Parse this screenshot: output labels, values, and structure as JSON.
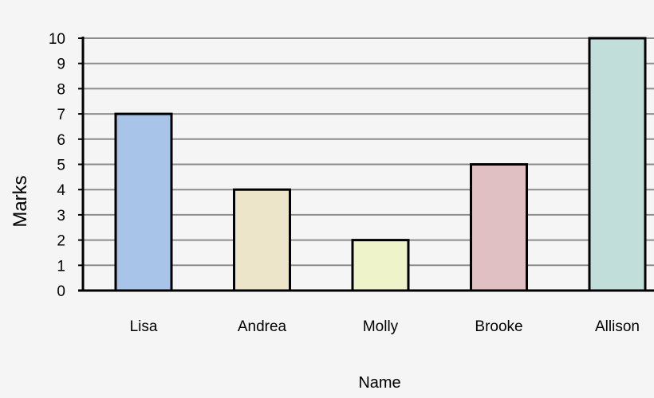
{
  "chart_data": {
    "type": "bar",
    "title": "",
    "xlabel": "Name",
    "ylabel": "Marks",
    "categories": [
      "Lisa",
      "Andrea",
      "Molly",
      "Brooke",
      "Allison"
    ],
    "values": [
      7,
      4,
      2,
      5,
      10
    ],
    "colors": [
      "#a9c4e9",
      "#ece5c9",
      "#eef3c9",
      "#e0c0c3",
      "#c2dedb"
    ],
    "ylim": [
      0,
      10
    ],
    "yticks": [
      0,
      1,
      2,
      3,
      4,
      5,
      6,
      7,
      8,
      9,
      10
    ],
    "grid": true,
    "legend": "none"
  }
}
